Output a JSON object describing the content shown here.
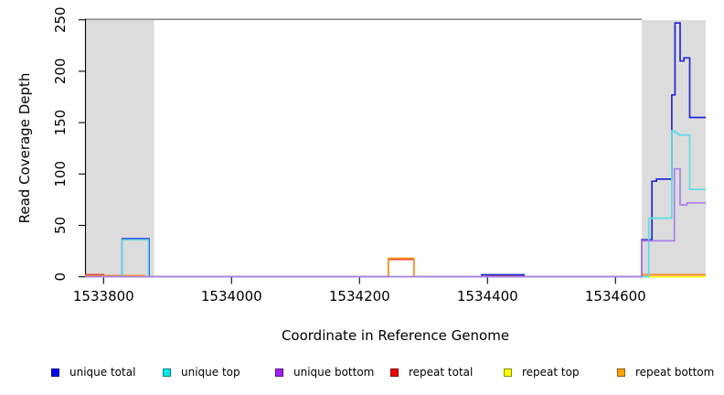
{
  "chart_data": {
    "type": "line",
    "step": true,
    "title": "",
    "xlabel": "Coordinate in Reference Genome",
    "ylabel": "Read Coverage Depth",
    "xlim": [
      1533771,
      1534741
    ],
    "ylim": [
      0,
      250
    ],
    "x_ticks": [
      1533800,
      1534000,
      1534200,
      1534400,
      1534600
    ],
    "y_ticks": [
      0,
      50,
      100,
      150,
      200,
      250
    ],
    "grid": false,
    "legend_position": "bottom",
    "shade_color": "#dcdcdc",
    "shaded_regions": [
      {
        "x_start": 1533771,
        "x_end": 1533879
      },
      {
        "x_start": 1534641,
        "x_end": 1534741
      }
    ],
    "reference_line": {
      "y": 250,
      "x_start": 1533771,
      "x_end": 1534641,
      "color": "#8a8a8a"
    },
    "series": [
      {
        "id": "repeat-top",
        "name": "repeat top",
        "color": "#ffff00",
        "points": [
          [
            1533771,
            0
          ],
          [
            1534741,
            0
          ]
        ]
      },
      {
        "id": "repeat-total",
        "name": "repeat total",
        "color": "#e0322a",
        "points": [
          [
            1533771,
            2
          ],
          [
            1533800,
            2
          ],
          [
            1533800,
            1
          ],
          [
            1533864,
            1
          ],
          [
            1533864,
            0
          ],
          [
            1534245,
            0
          ],
          [
            1534245,
            17
          ],
          [
            1534285,
            17
          ],
          [
            1534285,
            0
          ],
          [
            1534397,
            0
          ],
          [
            1534397,
            1
          ],
          [
            1534457,
            1
          ],
          [
            1534457,
            0
          ],
          [
            1534641,
            0
          ],
          [
            1534641,
            2
          ],
          [
            1534741,
            2
          ]
        ]
      },
      {
        "id": "repeat-bottom",
        "name": "repeat bottom",
        "color": "#ff9326",
        "points": [
          [
            1533771,
            1
          ],
          [
            1533864,
            1
          ],
          [
            1533864,
            0
          ],
          [
            1534245,
            0
          ],
          [
            1534245,
            18
          ],
          [
            1534285,
            18
          ],
          [
            1534285,
            0
          ],
          [
            1534641,
            0
          ],
          [
            1534641,
            2
          ],
          [
            1534741,
            2
          ]
        ]
      },
      {
        "id": "unique-total",
        "name": "unique total",
        "color": "#2626d4",
        "points": [
          [
            1533771,
            0
          ],
          [
            1533829,
            0
          ],
          [
            1533829,
            37
          ],
          [
            1533871,
            37
          ],
          [
            1533871,
            0
          ],
          [
            1534391,
            0
          ],
          [
            1534391,
            2
          ],
          [
            1534457,
            2
          ],
          [
            1534457,
            0
          ],
          [
            1534641,
            0
          ],
          [
            1534641,
            36
          ],
          [
            1534657,
            36
          ],
          [
            1534657,
            93
          ],
          [
            1534664,
            93
          ],
          [
            1534664,
            95
          ],
          [
            1534688,
            95
          ],
          [
            1534688,
            177
          ],
          [
            1534693,
            177
          ],
          [
            1534693,
            247
          ],
          [
            1534701,
            247
          ],
          [
            1534701,
            210
          ],
          [
            1534707,
            210
          ],
          [
            1534707,
            213
          ],
          [
            1534716,
            213
          ],
          [
            1534716,
            155
          ],
          [
            1534741,
            155
          ]
        ]
      },
      {
        "id": "unique-top",
        "name": "unique top",
        "color": "#5cdee6",
        "points": [
          [
            1533771,
            0
          ],
          [
            1533829,
            0
          ],
          [
            1533829,
            36
          ],
          [
            1533870,
            36
          ],
          [
            1533870,
            0
          ],
          [
            1534652,
            0
          ],
          [
            1534652,
            57
          ],
          [
            1534688,
            57
          ],
          [
            1534688,
            142
          ],
          [
            1534693,
            142
          ],
          [
            1534693,
            140
          ],
          [
            1534698,
            140
          ],
          [
            1534698,
            138
          ],
          [
            1534716,
            138
          ],
          [
            1534716,
            85
          ],
          [
            1534741,
            85
          ]
        ]
      },
      {
        "id": "unique-bottom",
        "name": "unique bottom",
        "color": "#a97fe6",
        "points": [
          [
            1533771,
            0
          ],
          [
            1534641,
            0
          ],
          [
            1534641,
            35
          ],
          [
            1534692,
            35
          ],
          [
            1534692,
            105
          ],
          [
            1534701,
            105
          ],
          [
            1534701,
            70
          ],
          [
            1534712,
            70
          ],
          [
            1534712,
            72
          ],
          [
            1534741,
            72
          ]
        ]
      }
    ]
  },
  "legend": {
    "items": [
      {
        "label": "unique total",
        "color": "#0000ee"
      },
      {
        "label": "unique top",
        "color": "#00e7e7"
      },
      {
        "label": "unique bottom",
        "color": "#a020f0"
      },
      {
        "label": "repeat total",
        "color": "#ee0000"
      },
      {
        "label": "repeat top",
        "color": "#ffff00"
      },
      {
        "label": "repeat bottom",
        "color": "#ffa500"
      }
    ]
  }
}
